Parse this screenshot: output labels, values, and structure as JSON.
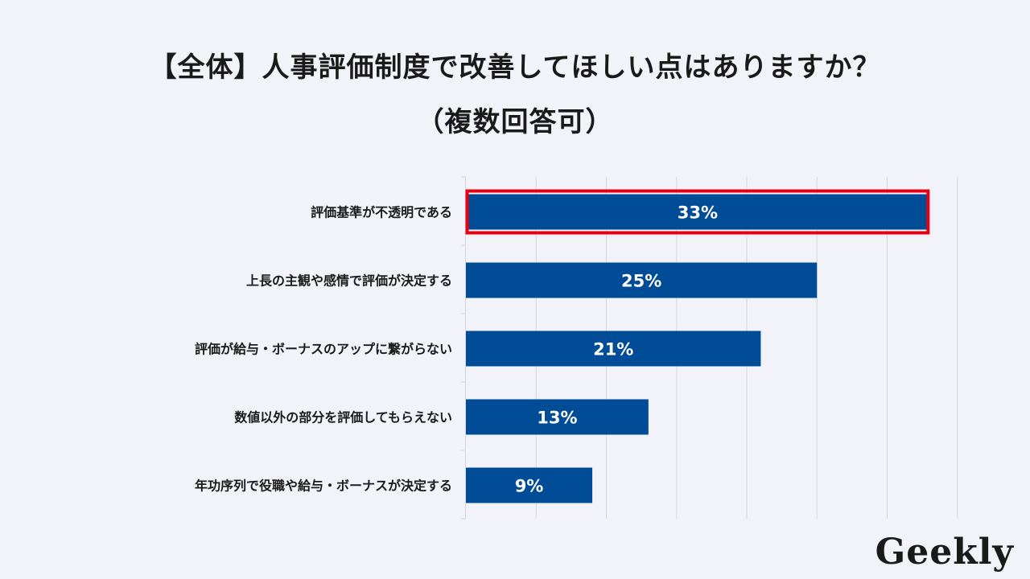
{
  "title": {
    "line1": "【全体】人事評価制度で改善してほしい点はありますか？",
    "line2": "（複数回答可）"
  },
  "chart_data": {
    "type": "bar",
    "orientation": "horizontal",
    "categories": [
      "評価基準が不透明である",
      "上長の主観や感情で評価が決定する",
      "評価が給与・ボーナスのアップに繋がらない",
      "数値以外の部分を評価してもらえない",
      "年功序列で役職や給与・ボーナスが決定する"
    ],
    "values": [
      33,
      25,
      21,
      13,
      9
    ],
    "data_labels": [
      "33%",
      "25%",
      "21%",
      "13%",
      "9%"
    ],
    "highlighted_category": "評価基準が不透明である",
    "grid": true,
    "xlim": [
      0,
      35
    ]
  },
  "colors": {
    "bar": "#004c97",
    "highlight_border": "#e60012",
    "grid": "#d4d6dc",
    "background": "#f2f3f8"
  },
  "logo": {
    "text": "Geekly"
  }
}
